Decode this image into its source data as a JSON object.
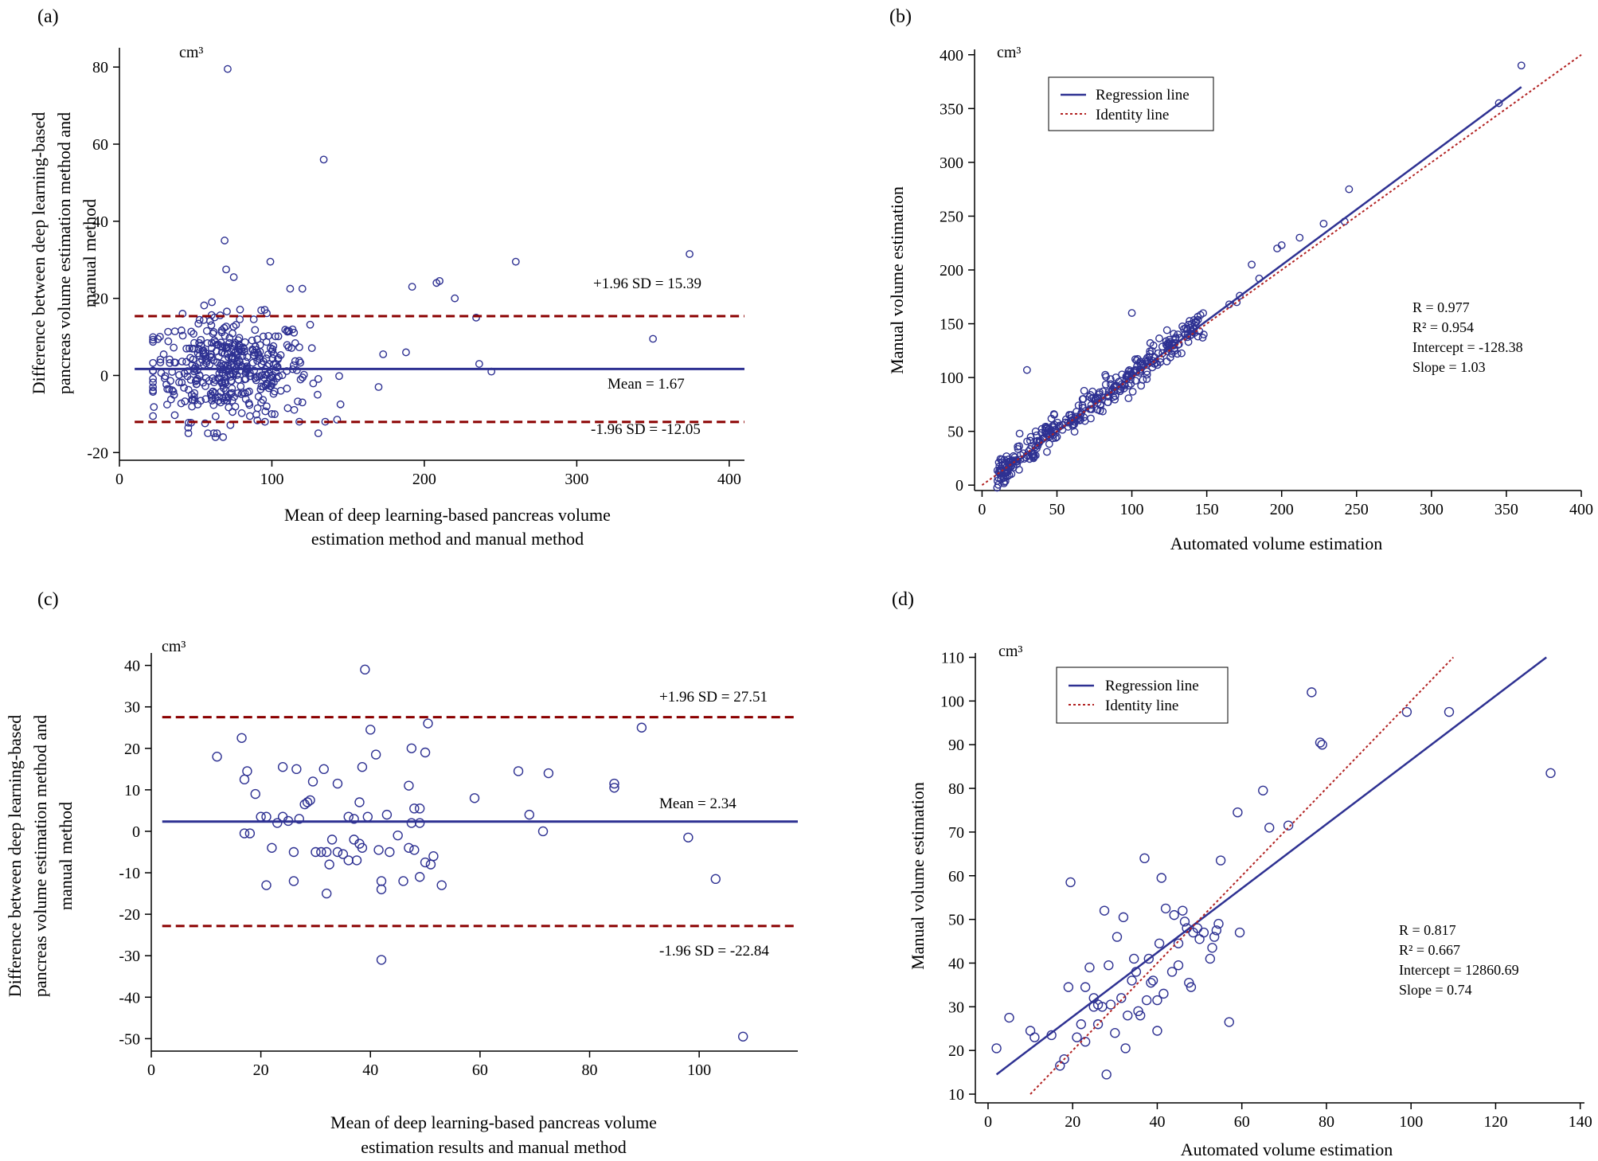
{
  "chart_data": [
    {
      "panel": "(a)",
      "type": "scatter",
      "title": "",
      "unit": "cm³",
      "xlabel": [
        "Mean of deep learning-based pancreas volume",
        "estimation method and manual method"
      ],
      "ylabel": [
        "Difference between deep learning-based",
        "pancreas volume estimation method and",
        "manual method"
      ],
      "xlim": [
        0,
        410
      ],
      "ylim": [
        -22,
        85
      ],
      "xticks": [
        0,
        100,
        200,
        300,
        400
      ],
      "yticks": [
        -20,
        0,
        20,
        40,
        60,
        80
      ],
      "hlines": [
        {
          "name": "upper",
          "y": 15.39,
          "label": "+1.96 SD = 15.39",
          "style": "dashed",
          "color": "#8b0000",
          "x_from": 10
        },
        {
          "name": "mean",
          "y": 1.67,
          "label": "Mean = 1.67",
          "style": "solid",
          "color": "#2e3192",
          "x_from": 10
        },
        {
          "name": "lower",
          "y": -12.05,
          "label": "-1.96 SD = -12.05",
          "style": "dashed",
          "color": "#8b0000",
          "x_from": 10
        }
      ],
      "n_cluster_points": 420,
      "cluster": {
        "x_center": 72,
        "x_spread": 26,
        "x_min": 22,
        "x_max": 148,
        "y_center": 1.67,
        "y_sd": 6.6
      },
      "points": [
        [
          71,
          79.5
        ],
        [
          134,
          56
        ],
        [
          69,
          35
        ],
        [
          99,
          29.5
        ],
        [
          260,
          29.5
        ],
        [
          374,
          31.5
        ],
        [
          210,
          24.5
        ],
        [
          208,
          24
        ],
        [
          192,
          23
        ],
        [
          112,
          22.5
        ],
        [
          120,
          22.5
        ],
        [
          70,
          27.5
        ],
        [
          75,
          25.5
        ],
        [
          220,
          20
        ],
        [
          234,
          15
        ],
        [
          350,
          9.5
        ],
        [
          236,
          3
        ],
        [
          244,
          1
        ],
        [
          188,
          6
        ],
        [
          173,
          5.5
        ],
        [
          170,
          -3
        ],
        [
          145,
          -7.5
        ],
        [
          135,
          -12
        ],
        [
          118,
          -12
        ],
        [
          63,
          -16
        ],
        [
          68,
          -16
        ],
        [
          58,
          -15
        ],
        [
          100,
          -10
        ],
        [
          120,
          -7
        ],
        [
          130,
          -5
        ]
      ]
    },
    {
      "panel": "(b)",
      "type": "scatter",
      "unit": "cm³",
      "xlabel": "Automated volume estimation",
      "ylabel": "Manual volume estimation",
      "xlim": [
        -5,
        400
      ],
      "ylim": [
        -5,
        405
      ],
      "xticks": [
        0,
        50,
        100,
        150,
        200,
        250,
        300,
        350,
        400
      ],
      "yticks": [
        0,
        50,
        100,
        150,
        200,
        250,
        300,
        350,
        400
      ],
      "legend": [
        "Regression line",
        "Identity line"
      ],
      "stats": [
        "R  =  0.977",
        "R² =  0.954",
        "Intercept =  -128.38",
        "Slope =  1.03"
      ],
      "regression_line": [
        [
          10,
          8
        ],
        [
          360,
          370
        ]
      ],
      "identity_line": [
        [
          0,
          0
        ],
        [
          400,
          400
        ]
      ],
      "n_cluster_points": 340,
      "cluster": {
        "x_min": 10,
        "x_max": 148,
        "noise_sd": 7
      },
      "points": [
        [
          360,
          390
        ],
        [
          345,
          355
        ],
        [
          245,
          275
        ],
        [
          242,
          245
        ],
        [
          228,
          243
        ],
        [
          212,
          230
        ],
        [
          200,
          223
        ],
        [
          197,
          220
        ],
        [
          180,
          205
        ],
        [
          185,
          192
        ],
        [
          172,
          176
        ],
        [
          170,
          170
        ],
        [
          165,
          168
        ],
        [
          30,
          107
        ],
        [
          100,
          160
        ],
        [
          143,
          152
        ],
        [
          140,
          150
        ],
        [
          137,
          145
        ],
        [
          148,
          140
        ],
        [
          125,
          130
        ]
      ]
    },
    {
      "panel": "(c)",
      "type": "scatter",
      "unit": "cm³",
      "xlabel": [
        "Mean of deep learning-based pancreas volume",
        "estimation results and manual method"
      ],
      "ylabel": [
        "Difference between deep learning-based",
        "pancreas volume estimation method and",
        "manual method"
      ],
      "xlim": [
        0,
        118
      ],
      "ylim": [
        -53,
        43
      ],
      "xticks": [
        0,
        20,
        40,
        60,
        80,
        100
      ],
      "yticks": [
        -50,
        -40,
        -30,
        -20,
        -10,
        0,
        10,
        20,
        30,
        40
      ],
      "hlines": [
        {
          "name": "upper",
          "y": 27.51,
          "label": "+1.96 SD = 27.51",
          "style": "dashed",
          "color": "#8b0000",
          "x_from": 2
        },
        {
          "name": "mean",
          "y": 2.34,
          "label": "Mean = 2.34",
          "style": "solid",
          "color": "#2e3192",
          "x_from": 2
        },
        {
          "name": "lower",
          "y": -22.84,
          "label": "-1.96 SD = -22.84",
          "style": "dashed",
          "color": "#8b0000",
          "x_from": 2
        }
      ],
      "points": [
        [
          39,
          39
        ],
        [
          12,
          18
        ],
        [
          16.5,
          22.5
        ],
        [
          17.5,
          14.5
        ],
        [
          17,
          12.5
        ],
        [
          19,
          9
        ],
        [
          20,
          3.5
        ],
        [
          21,
          3.5
        ],
        [
          24,
          15.5
        ],
        [
          26.5,
          15
        ],
        [
          29.5,
          12
        ],
        [
          31.5,
          15
        ],
        [
          34,
          11.5
        ],
        [
          36,
          3.5
        ],
        [
          37,
          3
        ],
        [
          38.5,
          15.5
        ],
        [
          40,
          24.5
        ],
        [
          41,
          18.5
        ],
        [
          43,
          4
        ],
        [
          47,
          11
        ],
        [
          47.5,
          20
        ],
        [
          48,
          5.5
        ],
        [
          49,
          5.5
        ],
        [
          50,
          19
        ],
        [
          50.5,
          26
        ],
        [
          59,
          8
        ],
        [
          67,
          14.5
        ],
        [
          69,
          4
        ],
        [
          71.5,
          0
        ],
        [
          72.5,
          14
        ],
        [
          84.5,
          10.5
        ],
        [
          84.5,
          11.5
        ],
        [
          89.5,
          25
        ],
        [
          98,
          -1.5
        ],
        [
          103,
          -11.5
        ],
        [
          108,
          -49.5
        ],
        [
          42,
          -31
        ],
        [
          17,
          -0.5
        ],
        [
          18,
          -0.5
        ],
        [
          21,
          -13
        ],
        [
          23,
          2
        ],
        [
          24,
          3.5
        ],
        [
          25,
          2.5
        ],
        [
          27,
          3
        ],
        [
          28,
          6.5
        ],
        [
          28.5,
          7
        ],
        [
          29,
          7.5
        ],
        [
          22,
          -4
        ],
        [
          26,
          -5
        ],
        [
          26,
          -12
        ],
        [
          31,
          -5
        ],
        [
          32,
          -5
        ],
        [
          32.5,
          -8
        ],
        [
          32,
          -15
        ],
        [
          34,
          -5
        ],
        [
          35,
          -5.5
        ],
        [
          36,
          -7
        ],
        [
          37,
          -2
        ],
        [
          38,
          -3
        ],
        [
          38.5,
          -4
        ],
        [
          37.5,
          -7
        ],
        [
          38,
          7
        ],
        [
          39.5,
          3.5
        ],
        [
          41.5,
          -4.5
        ],
        [
          42,
          -12
        ],
        [
          42,
          -14
        ],
        [
          43.5,
          -5
        ],
        [
          45,
          -1
        ],
        [
          46,
          -12
        ],
        [
          47,
          -4
        ],
        [
          47.5,
          2
        ],
        [
          48,
          -4.5
        ],
        [
          49,
          -11
        ],
        [
          49,
          2
        ],
        [
          50,
          -7.5
        ],
        [
          51,
          -8
        ],
        [
          51.5,
          -6
        ],
        [
          53,
          -13
        ],
        [
          30,
          -5
        ],
        [
          33,
          -2
        ]
      ]
    },
    {
      "panel": "(d)",
      "type": "scatter",
      "unit": "cm³",
      "xlabel": "Automated volume estimation",
      "ylabel": "Manual volume estimation",
      "xlim": [
        -3,
        141
      ],
      "ylim": [
        8,
        111
      ],
      "xticks": [
        0,
        20,
        40,
        60,
        80,
        100,
        120,
        140
      ],
      "yticks": [
        10,
        20,
        30,
        40,
        50,
        60,
        70,
        80,
        90,
        100,
        110
      ],
      "legend": [
        "Regression line",
        "Identity line"
      ],
      "stats": [
        "R  = 0.817",
        "R² = 0.667",
        "Intercept = 12860.69",
        "Slope = 0.74"
      ],
      "regression_line": [
        [
          2,
          14.5
        ],
        [
          132,
          110
        ]
      ],
      "identity_line": [
        [
          10,
          10
        ],
        [
          110,
          110
        ]
      ],
      "points": [
        [
          2,
          20.5
        ],
        [
          5,
          27.5
        ],
        [
          10,
          24.5
        ],
        [
          11,
          23
        ],
        [
          15,
          23.5
        ],
        [
          17,
          16.5
        ],
        [
          18,
          18
        ],
        [
          19,
          34.5
        ],
        [
          19.5,
          58.5
        ],
        [
          21,
          23
        ],
        [
          22,
          26
        ],
        [
          23,
          34.5
        ],
        [
          24,
          39
        ],
        [
          25,
          30
        ],
        [
          25,
          32
        ],
        [
          26,
          26
        ],
        [
          27,
          30
        ],
        [
          27.5,
          52
        ],
        [
          28,
          14.5
        ],
        [
          28.5,
          39.5
        ],
        [
          30,
          24
        ],
        [
          30.5,
          46
        ],
        [
          31.5,
          32
        ],
        [
          32,
          50.5
        ],
        [
          32.5,
          20.5
        ],
        [
          33,
          28
        ],
        [
          34,
          36
        ],
        [
          34.5,
          41
        ],
        [
          35,
          38
        ],
        [
          35.5,
          29
        ],
        [
          36,
          28
        ],
        [
          37,
          64
        ],
        [
          37.5,
          31.5
        ],
        [
          38,
          41
        ],
        [
          38.5,
          35.5
        ],
        [
          39,
          36
        ],
        [
          40,
          31.5
        ],
        [
          40,
          24.5
        ],
        [
          40.5,
          44.5
        ],
        [
          41,
          59.5
        ],
        [
          41.5,
          33
        ],
        [
          42,
          52.5
        ],
        [
          43.5,
          38
        ],
        [
          44,
          51
        ],
        [
          45,
          39.5
        ],
        [
          45,
          44.5
        ],
        [
          46,
          52
        ],
        [
          46.5,
          49.5
        ],
        [
          47,
          48
        ],
        [
          47.5,
          35.5
        ],
        [
          48,
          34.5
        ],
        [
          48.5,
          47
        ],
        [
          49.5,
          48
        ],
        [
          50,
          45.5
        ],
        [
          51,
          47
        ],
        [
          52.5,
          41
        ],
        [
          53,
          43.5
        ],
        [
          53.5,
          46
        ],
        [
          54,
          47.5
        ],
        [
          54.5,
          49
        ],
        [
          55,
          63.5
        ],
        [
          57,
          26.5
        ],
        [
          59,
          74.5
        ],
        [
          59.5,
          47
        ],
        [
          65,
          79.5
        ],
        [
          66.5,
          71
        ],
        [
          71,
          71.5
        ],
        [
          76.5,
          102
        ],
        [
          78.5,
          90.5
        ],
        [
          79,
          90
        ],
        [
          99,
          97.5
        ],
        [
          109,
          97.5
        ],
        [
          133,
          83.5
        ],
        [
          23,
          22
        ],
        [
          26,
          30.5
        ],
        [
          29,
          30.5
        ]
      ]
    }
  ],
  "panel_labels": [
    "(a)",
    "(b)",
    "(c)",
    "(d)"
  ]
}
